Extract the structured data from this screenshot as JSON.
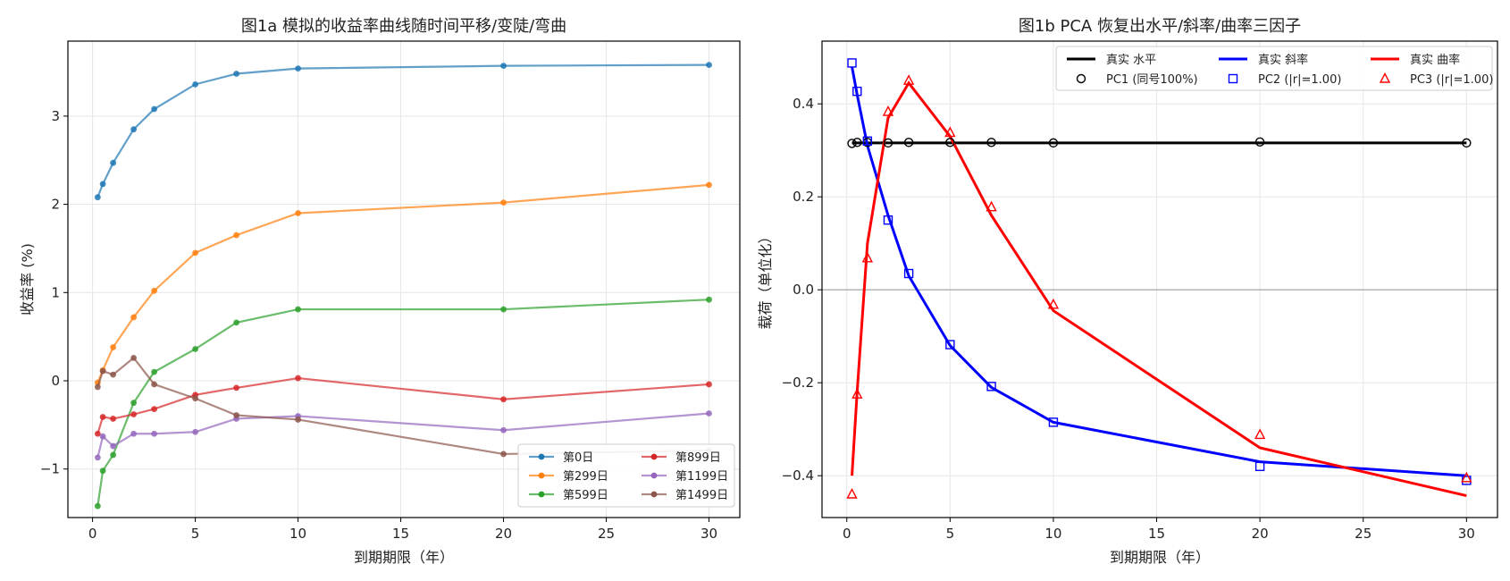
{
  "chart_data": [
    {
      "type": "line",
      "title": "图1a  模拟的收益率曲线随时间平移/变陡/弯曲",
      "xlabel": "到期期限（年）",
      "ylabel": "收益率 (%)",
      "xlim": [
        -1.2,
        31.5
      ],
      "ylim": [
        -1.55,
        3.85
      ],
      "xticks": [
        0,
        5,
        10,
        15,
        20,
        25,
        30
      ],
      "yticks": [
        -1,
        0,
        1,
        2,
        3
      ],
      "grid": true,
      "legend_position": "bottom-right",
      "legend_columns": 2,
      "x": [
        0.25,
        0.5,
        1,
        2,
        3,
        5,
        7,
        10,
        20,
        30
      ],
      "series": [
        {
          "name": "第0日",
          "color": "#1f77b4",
          "values": [
            2.08,
            2.23,
            2.47,
            2.85,
            3.08,
            3.36,
            3.48,
            3.54,
            3.57,
            3.58
          ]
        },
        {
          "name": "第299日",
          "color": "#ff7f0e",
          "values": [
            -0.02,
            0.12,
            0.38,
            0.72,
            1.02,
            1.45,
            1.65,
            1.9,
            2.02,
            2.22
          ]
        },
        {
          "name": "第599日",
          "color": "#2ca02c",
          "values": [
            -1.42,
            -1.02,
            -0.84,
            -0.25,
            0.1,
            0.36,
            0.66,
            0.81,
            0.81,
            0.92
          ]
        },
        {
          "name": "第899日",
          "color": "#d62728",
          "values": [
            -0.6,
            -0.41,
            -0.43,
            -0.38,
            -0.32,
            -0.16,
            -0.08,
            0.03,
            -0.21,
            -0.04
          ]
        },
        {
          "name": "第1199日",
          "color": "#9467bd",
          "values": [
            -0.87,
            -0.63,
            -0.74,
            -0.6,
            -0.6,
            -0.58,
            -0.43,
            -0.4,
            -0.56,
            -0.37
          ]
        },
        {
          "name": "第1499日",
          "color": "#8c564b",
          "values": [
            -0.07,
            0.11,
            0.07,
            0.26,
            -0.04,
            -0.2,
            -0.39,
            -0.44,
            -0.83,
            -0.79
          ]
        }
      ]
    },
    {
      "type": "line",
      "title": "图1b  PCA 恢复出水平/斜率/曲率三因子",
      "xlabel": "到期期限（年）",
      "ylabel": "载荷（单位化）",
      "xlim": [
        -1.2,
        31.5
      ],
      "ylim": [
        -0.49,
        0.535
      ],
      "xticks": [
        0,
        5,
        10,
        15,
        20,
        25,
        30
      ],
      "yticks": [
        -0.4,
        -0.2,
        0.0,
        0.2,
        0.4
      ],
      "grid": true,
      "zero_line": true,
      "legend_position": "top-right",
      "legend_columns": 3,
      "x": [
        0.25,
        0.5,
        1,
        2,
        3,
        5,
        7,
        10,
        20,
        30
      ],
      "series": [
        {
          "name": "真实 水平",
          "kind": "line",
          "color": "#000000",
          "values": [
            0.316,
            0.316,
            0.316,
            0.316,
            0.316,
            0.316,
            0.316,
            0.316,
            0.316,
            0.316
          ]
        },
        {
          "name": "真实 斜率",
          "kind": "line",
          "color": "#0000ff",
          "values": [
            0.48,
            0.42,
            0.31,
            0.16,
            0.03,
            -0.12,
            -0.21,
            -0.285,
            -0.37,
            -0.4
          ]
        },
        {
          "name": "真实 曲率",
          "kind": "line",
          "color": "#ff0000",
          "values": [
            -0.4,
            -0.22,
            0.1,
            0.37,
            0.445,
            0.33,
            0.16,
            -0.045,
            -0.34,
            -0.443
          ]
        },
        {
          "name": "PC1 (同号100%)",
          "kind": "marker",
          "marker": "circle",
          "color": "#000000",
          "values": [
            0.315,
            0.317,
            0.317,
            0.316,
            0.317,
            0.317,
            0.317,
            0.316,
            0.318,
            0.316
          ]
        },
        {
          "name": "PC2 (|r|=1.00)",
          "kind": "marker",
          "marker": "square",
          "color": "#0000ff",
          "values": [
            0.488,
            0.427,
            0.32,
            0.15,
            0.035,
            -0.118,
            -0.208,
            -0.285,
            -0.38,
            -0.41
          ]
        },
        {
          "name": "PC3 (|r|=1.00)",
          "kind": "marker",
          "marker": "triangle",
          "color": "#ff0000",
          "values": [
            -0.44,
            -0.225,
            0.068,
            0.383,
            0.45,
            0.338,
            0.178,
            -0.032,
            -0.312,
            -0.405
          ]
        }
      ]
    }
  ]
}
